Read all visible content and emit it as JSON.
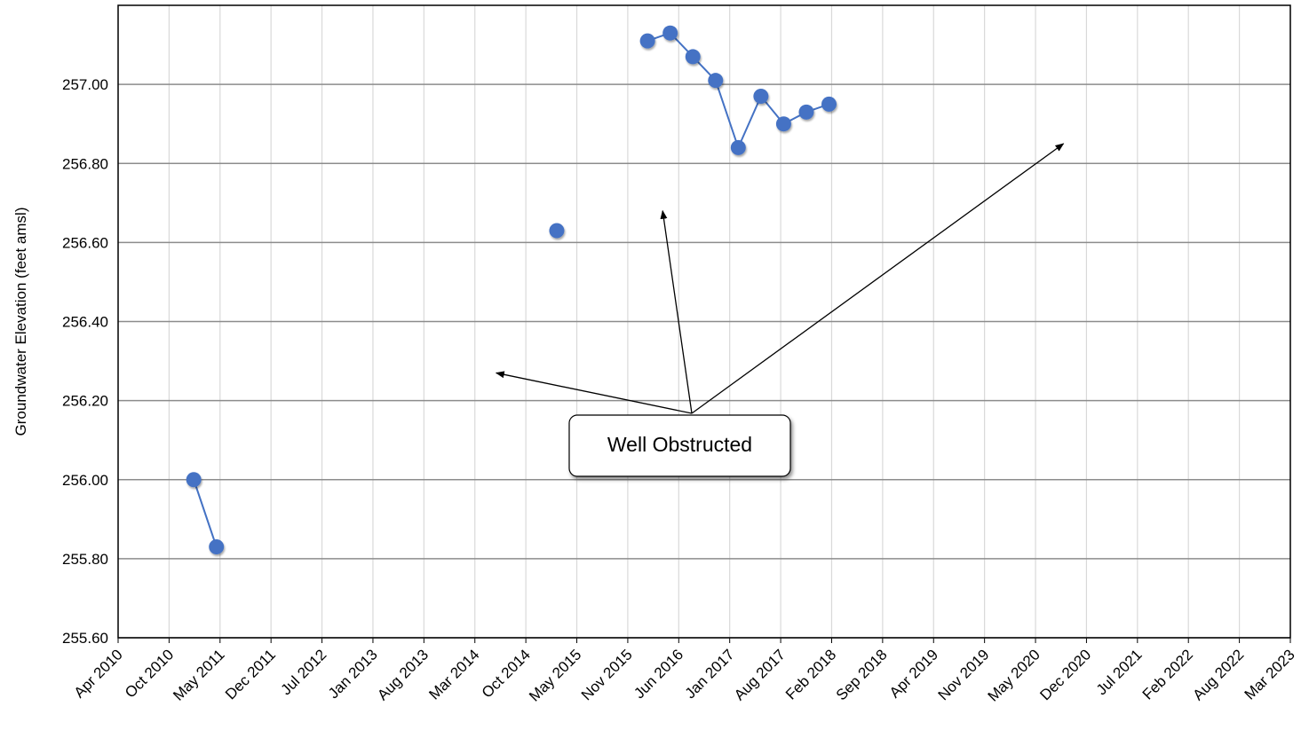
{
  "chart_data": {
    "type": "scatter",
    "title": "",
    "xlabel": "",
    "ylabel": "Groundwater Elevation (feet amsl)",
    "ylim": [
      255.6,
      257.2
    ],
    "yticks": [
      "255.60",
      "255.80",
      "256.00",
      "256.20",
      "256.40",
      "256.60",
      "256.80",
      "257.00"
    ],
    "xlim": [
      "2010-04",
      "2023-03"
    ],
    "xticks": [
      "Apr 2010",
      "Oct 2010",
      "May 2011",
      "Dec 2011",
      "Jul 2012",
      "Jan 2013",
      "Aug 2013",
      "Mar 2014",
      "Oct 2014",
      "May 2015",
      "Nov 2015",
      "Jun 2016",
      "Jan 2017",
      "Aug 2017",
      "Feb 2018",
      "Sep 2018",
      "Apr 2019",
      "Nov 2019",
      "May 2020",
      "Dec 2020",
      "Jul 2021",
      "Feb 2022",
      "Aug 2022",
      "Mar 2023"
    ],
    "grid": true,
    "series": [
      {
        "name": "",
        "color": "#4472C4",
        "segments": [
          [
            {
              "x": "2011-02",
              "y": 256.0
            },
            {
              "x": "2011-05",
              "y": 255.83
            }
          ],
          [
            {
              "x": "2015-02",
              "y": 256.63
            }
          ],
          [
            {
              "x": "2016-02",
              "y": 257.11
            },
            {
              "x": "2016-05",
              "y": 257.13
            },
            {
              "x": "2016-08",
              "y": 257.07
            },
            {
              "x": "2016-11",
              "y": 257.01
            },
            {
              "x": "2017-02",
              "y": 256.84
            },
            {
              "x": "2017-05",
              "y": 256.97
            },
            {
              "x": "2017-08",
              "y": 256.9
            },
            {
              "x": "2017-11",
              "y": 256.93
            },
            {
              "x": "2018-02",
              "y": 256.95
            }
          ]
        ]
      }
    ],
    "annotations": [
      {
        "text": "Well Obstructed",
        "arrow_targets": [
          {
            "x": "2014-06",
            "y": 256.27
          },
          {
            "x": "2016-04",
            "y": 256.68
          },
          {
            "x": "2020-09",
            "y": 256.85
          }
        ]
      }
    ]
  }
}
